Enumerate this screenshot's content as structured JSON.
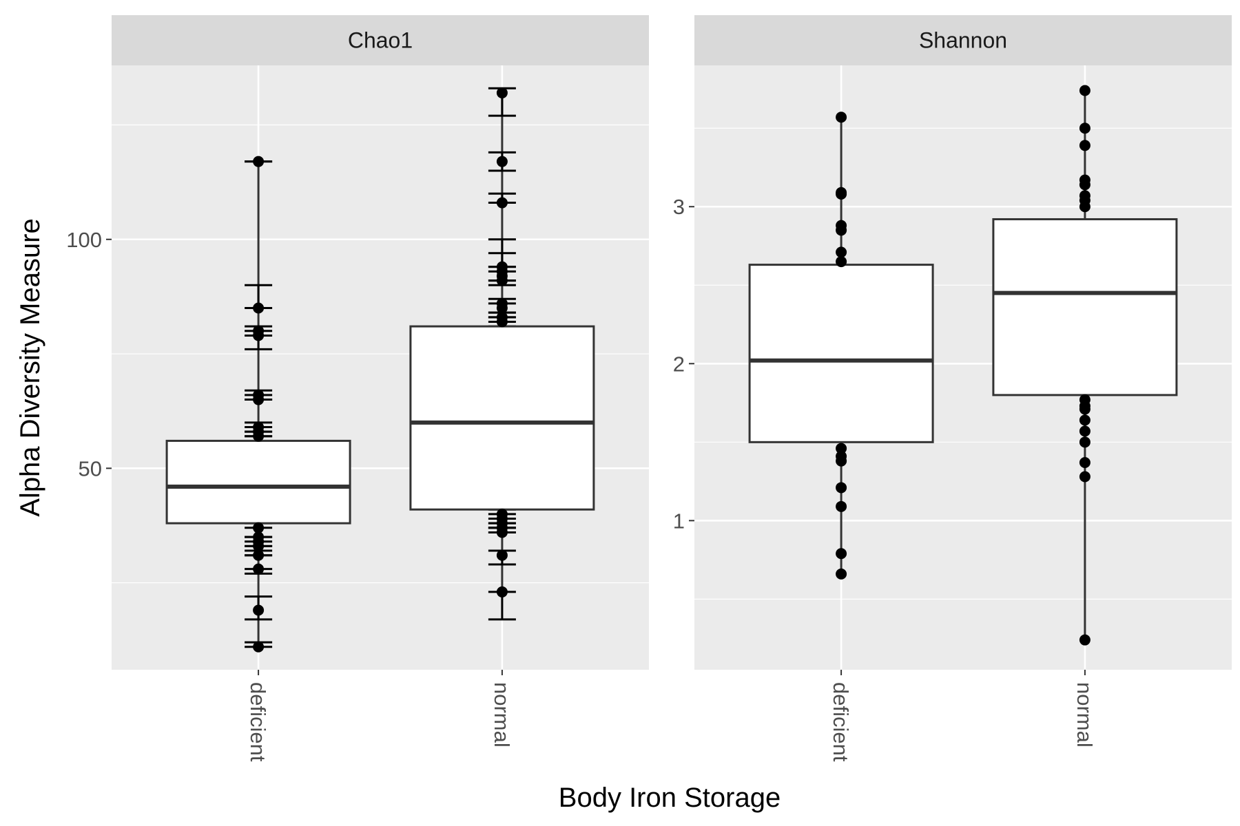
{
  "chart_data": {
    "type": "box",
    "xlabel": "Body Iron Storage",
    "ylabel": "Alpha Diversity Measure",
    "categories": [
      "deficient",
      "normal"
    ],
    "panel_background": "#ebebeb",
    "strip_background": "#d9d9d9",
    "box_fill": "#ffffff",
    "line_color": "#333333",
    "point_color": "#000000",
    "grid": true,
    "legend": "none",
    "panels": [
      {
        "title": "Chao1",
        "ylim": [
          6,
          138
        ],
        "yticks": [
          50,
          100
        ],
        "minor_ticks": [
          25,
          75,
          125
        ],
        "has_errorbars": true,
        "groups": [
          {
            "category": "deficient",
            "box": {
              "q1": 38,
              "median": 46,
              "q3": 56
            },
            "points": [
              {
                "y": 117,
                "lo": 117,
                "hi": 117
              },
              {
                "y": 85,
                "lo": 85,
                "hi": 90
              },
              {
                "y": 80,
                "lo": 76,
                "hi": 81
              },
              {
                "y": 79,
                "lo": 79,
                "hi": 80
              },
              {
                "y": 66,
                "lo": 66,
                "hi": 67
              },
              {
                "y": 65,
                "lo": 65,
                "hi": 65
              },
              {
                "y": 59,
                "lo": 59,
                "hi": 60
              },
              {
                "y": 58,
                "lo": 58,
                "hi": 58
              },
              {
                "y": 57,
                "lo": 57,
                "hi": 57
              },
              {
                "y": 37,
                "lo": 37,
                "hi": 38
              },
              {
                "y": 35,
                "lo": 35,
                "hi": 35
              },
              {
                "y": 34,
                "lo": 33,
                "hi": 34
              },
              {
                "y": 33,
                "lo": 32,
                "hi": 33
              },
              {
                "y": 31,
                "lo": 31,
                "hi": 31
              },
              {
                "y": 28,
                "lo": 27,
                "hi": 28
              },
              {
                "y": 19,
                "lo": 17,
                "hi": 22
              },
              {
                "y": 11,
                "lo": 11,
                "hi": 12
              }
            ]
          },
          {
            "category": "normal",
            "box": {
              "q1": 41,
              "median": 60,
              "q3": 81
            },
            "points": [
              {
                "y": 132,
                "lo": 127,
                "hi": 133
              },
              {
                "y": 117,
                "lo": 115,
                "hi": 119
              },
              {
                "y": 108,
                "lo": 108,
                "hi": 110
              },
              {
                "y": 94,
                "lo": 94,
                "hi": 100
              },
              {
                "y": 93,
                "lo": 93,
                "hi": 97
              },
              {
                "y": 92,
                "lo": 91,
                "hi": 94
              },
              {
                "y": 91,
                "lo": 90,
                "hi": 91
              },
              {
                "y": 86,
                "lo": 84,
                "hi": 87
              },
              {
                "y": 85,
                "lo": 83,
                "hi": 86
              },
              {
                "y": 83,
                "lo": 82,
                "hi": 84
              },
              {
                "y": 82,
                "lo": 81,
                "hi": 83
              },
              {
                "y": 40,
                "lo": 40,
                "hi": 41
              },
              {
                "y": 39,
                "lo": 38,
                "hi": 39
              },
              {
                "y": 38,
                "lo": 37,
                "hi": 38
              },
              {
                "y": 37,
                "lo": 37,
                "hi": 37
              },
              {
                "y": 36,
                "lo": 36,
                "hi": 36
              },
              {
                "y": 31,
                "lo": 29,
                "hi": 32
              },
              {
                "y": 23,
                "lo": 17,
                "hi": 23
              }
            ]
          }
        ]
      },
      {
        "title": "Shannon",
        "ylim": [
          0.05,
          3.9
        ],
        "yticks": [
          1,
          2,
          3
        ],
        "minor_ticks": [
          0.5,
          1.5,
          2.5,
          3.5
        ],
        "has_errorbars": false,
        "groups": [
          {
            "category": "deficient",
            "box": {
              "q1": 1.5,
              "median": 2.02,
              "q3": 2.63
            },
            "points": [
              {
                "y": 3.57
              },
              {
                "y": 3.09
              },
              {
                "y": 3.08
              },
              {
                "y": 2.88
              },
              {
                "y": 2.85
              },
              {
                "y": 2.71
              },
              {
                "y": 2.65
              },
              {
                "y": 1.46
              },
              {
                "y": 1.41
              },
              {
                "y": 1.38
              },
              {
                "y": 1.21
              },
              {
                "y": 1.09
              },
              {
                "y": 0.79
              },
              {
                "y": 0.66
              }
            ]
          },
          {
            "category": "normal",
            "box": {
              "q1": 1.8,
              "median": 2.45,
              "q3": 2.92
            },
            "points": [
              {
                "y": 3.74
              },
              {
                "y": 3.5
              },
              {
                "y": 3.39
              },
              {
                "y": 3.17
              },
              {
                "y": 3.14
              },
              {
                "y": 3.07
              },
              {
                "y": 3.04
              },
              {
                "y": 3.0
              },
              {
                "y": 1.77
              },
              {
                "y": 1.73
              },
              {
                "y": 1.71
              },
              {
                "y": 1.64
              },
              {
                "y": 1.57
              },
              {
                "y": 1.5
              },
              {
                "y": 1.37
              },
              {
                "y": 1.28
              },
              {
                "y": 0.24
              }
            ]
          }
        ]
      }
    ]
  }
}
